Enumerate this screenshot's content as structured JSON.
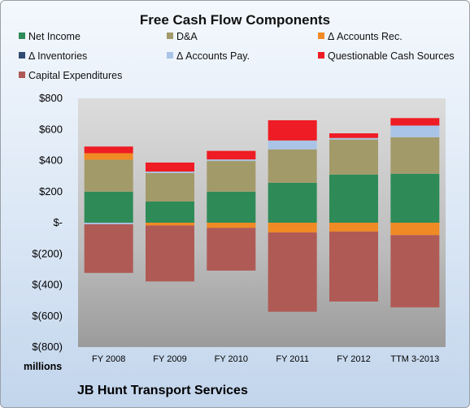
{
  "chart_data": {
    "type": "bar",
    "stacked": true,
    "title": "Free Cash Flow Components",
    "units_label": "millions",
    "footer": "JB Hunt Transport Services",
    "categories": [
      "FY 2008",
      "FY 2009",
      "FY 2010",
      "FY 2011",
      "FY 2012",
      "TTM 3-2013"
    ],
    "ylim": [
      -800,
      800
    ],
    "yticks": [
      800,
      600,
      400,
      200,
      0,
      -200,
      -400,
      -600,
      -800
    ],
    "ytick_labels": [
      "$800",
      "$600",
      "$400",
      "$200",
      "$-",
      "$(200)",
      "$(400)",
      "$(600)",
      "$(800)"
    ],
    "series": [
      {
        "name": "Net Income",
        "color": "#2e8b57",
        "values": [
          200,
          136,
          200,
          257,
          310,
          315
        ]
      },
      {
        "name": "D&A",
        "color": "#a39a6a",
        "values": [
          205,
          183,
          197,
          215,
          225,
          235
        ]
      },
      {
        "name": "Δ Accounts Rec.",
        "color": "#f08a24",
        "values": [
          42,
          -18,
          -33,
          -63,
          -57,
          -80
        ]
      },
      {
        "name": "Δ Inventories",
        "color": "#2f4a73",
        "values": [
          0,
          0,
          0,
          0,
          0,
          0
        ]
      },
      {
        "name": "Δ Accounts Pay.",
        "color": "#a9c4e6",
        "values": [
          -10,
          10,
          10,
          57,
          10,
          75
        ]
      },
      {
        "name": "Questionable Cash Sources",
        "color": "#ee1c24",
        "values": [
          43,
          58,
          55,
          130,
          30,
          48
        ]
      },
      {
        "name": "Capital Expenditures",
        "color": "#b05a55",
        "values": [
          -313,
          -360,
          -275,
          -510,
          -450,
          -465
        ]
      }
    ]
  }
}
